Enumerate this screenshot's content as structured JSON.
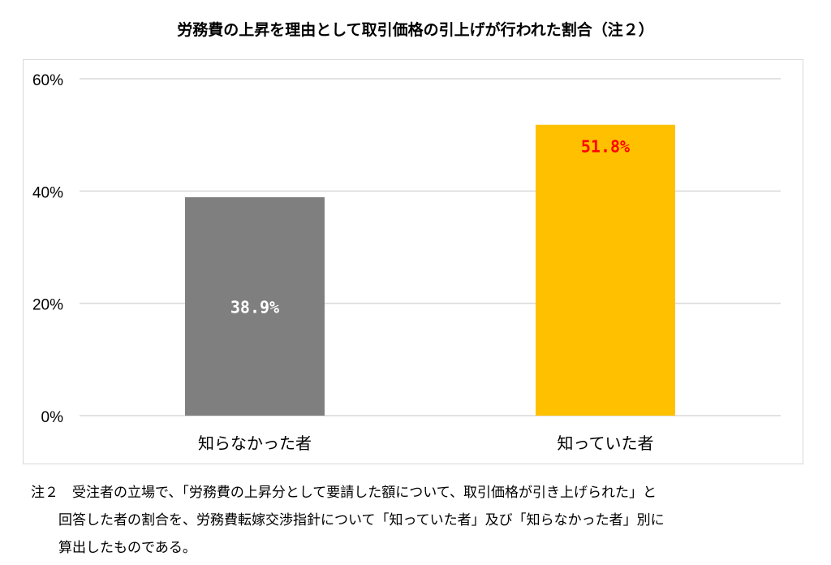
{
  "chart_data": {
    "type": "bar",
    "title": "労務費の上昇を理由として取引価格の引上げが行われた割合（注２）",
    "categories": [
      "知らなかった者",
      "知っていた者"
    ],
    "values": [
      38.9,
      51.8
    ],
    "data_labels": [
      "38.9%",
      "51.8%"
    ],
    "colors": [
      "#7f7f7f",
      "#ffc000"
    ],
    "label_colors": [
      "#ffffff",
      "#ff0000"
    ],
    "ylim": [
      0,
      60
    ],
    "yticks": [
      0,
      20,
      40,
      60
    ],
    "ytick_labels": [
      "0%",
      "20%",
      "40%",
      "60%"
    ],
    "grid": true,
    "xlabel": "",
    "ylabel": ""
  },
  "notes": {
    "line1": "注２　受注者の立場で、「労務費の上昇分として要請した額について、取引価格が引き上げられた」と",
    "line2": "回答した者の割合を、労務費転嫁交渉指針について「知っていた者」及び「知らなかった者」別に",
    "line3": "算出したものである。"
  }
}
